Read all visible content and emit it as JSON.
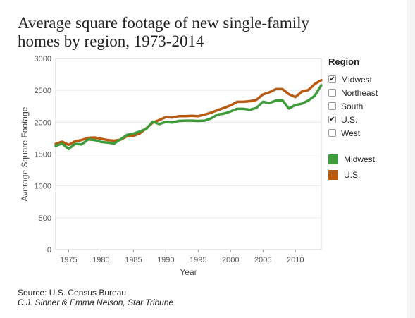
{
  "title": "Average square footage of new single-family homes by region, 1973-2014",
  "legend": {
    "title": "Region",
    "filters": [
      {
        "label": "Midwest",
        "checked": true
      },
      {
        "label": "Northeast",
        "checked": false
      },
      {
        "label": "South",
        "checked": false
      },
      {
        "label": "U.S.",
        "checked": true
      },
      {
        "label": "West",
        "checked": false
      }
    ],
    "colors": [
      {
        "label": "Midwest",
        "color": "#3e9c3a"
      },
      {
        "label": "U.S.",
        "color": "#b85a12"
      }
    ]
  },
  "source": "Source: U.S. Census Bureau",
  "credit": "C.J. Sinner & Emma Nelson, Star Tribune",
  "chart_data": {
    "type": "line",
    "title": "Average square footage of new single-family homes by region, 1973-2014",
    "xlabel": "Year",
    "ylabel": "Average Square Footage",
    "xlim": [
      1973,
      2014
    ],
    "ylim": [
      0,
      3000
    ],
    "xticks": [
      1975,
      1980,
      1985,
      1990,
      1995,
      2000,
      2005,
      2010
    ],
    "yticks": [
      0,
      500,
      1000,
      1500,
      2000,
      2500,
      3000
    ],
    "grid": true,
    "legend_position": "right",
    "x": [
      1973,
      1974,
      1975,
      1976,
      1977,
      1978,
      1979,
      1980,
      1981,
      1982,
      1983,
      1984,
      1985,
      1986,
      1987,
      1988,
      1989,
      1990,
      1991,
      1992,
      1993,
      1994,
      1995,
      1996,
      1997,
      1998,
      1999,
      2000,
      2001,
      2002,
      2003,
      2004,
      2005,
      2006,
      2007,
      2008,
      2009,
      2010,
      2011,
      2012,
      2013,
      2014
    ],
    "series": [
      {
        "name": "U.S.",
        "color": "#b85a12",
        "values": [
          1660,
          1695,
          1645,
          1700,
          1720,
          1755,
          1760,
          1740,
          1720,
          1710,
          1725,
          1780,
          1785,
          1825,
          1905,
          1995,
          2035,
          2080,
          2075,
          2095,
          2095,
          2100,
          2095,
          2120,
          2150,
          2190,
          2225,
          2265,
          2320,
          2320,
          2330,
          2350,
          2435,
          2470,
          2520,
          2520,
          2440,
          2395,
          2480,
          2505,
          2600,
          2660
        ]
      },
      {
        "name": "Midwest",
        "color": "#3e9c3a",
        "values": [
          1630,
          1665,
          1580,
          1660,
          1650,
          1730,
          1720,
          1690,
          1680,
          1665,
          1730,
          1800,
          1820,
          1855,
          1895,
          2010,
          1970,
          2005,
          1995,
          2020,
          2025,
          2025,
          2020,
          2025,
          2060,
          2120,
          2135,
          2170,
          2210,
          2210,
          2195,
          2225,
          2320,
          2300,
          2340,
          2345,
          2215,
          2270,
          2290,
          2340,
          2415,
          2580
        ]
      }
    ]
  }
}
